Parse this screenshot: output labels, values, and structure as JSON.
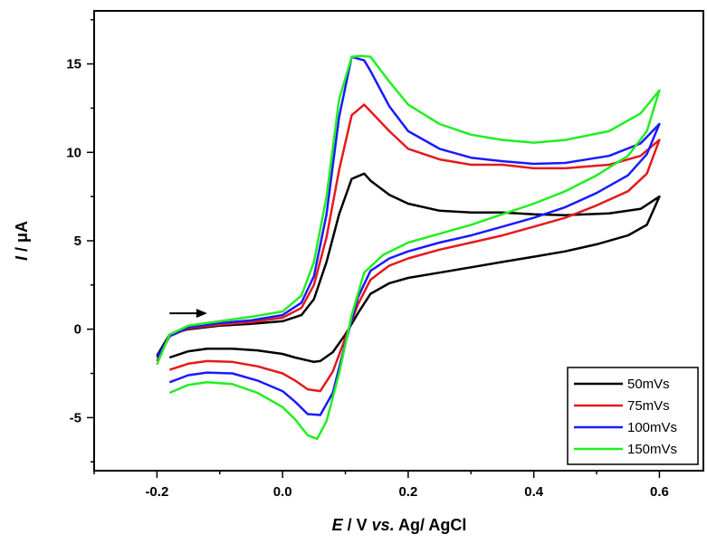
{
  "chart_data": {
    "type": "line",
    "title": "",
    "xlabel": "E / V vs. Ag/ AgCl",
    "ylabel": "I / μA",
    "xlim": [
      -0.3,
      0.67
    ],
    "ylim": [
      -8,
      18
    ],
    "xticks": [
      -0.2,
      0.0,
      0.2,
      0.4,
      0.6
    ],
    "yticks": [
      -5,
      0,
      5,
      10,
      15
    ],
    "xtick_labels": [
      "-0.2",
      "0.0",
      "0.2",
      "0.4",
      "0.6"
    ],
    "ytick_labels": [
      "-5",
      "0",
      "5",
      "10",
      "15"
    ],
    "grid": false,
    "legend_position": "bottom-right",
    "annotation": "scan direction arrow (positive direction)",
    "annotation_arrow": {
      "from": [
        -0.18,
        0.9
      ],
      "to": [
        -0.12,
        0.9
      ]
    },
    "series": [
      {
        "name": "50mVs",
        "color": "#000000",
        "points": [
          [
            -0.18,
            -1.6
          ],
          [
            -0.15,
            -1.25
          ],
          [
            -0.12,
            -1.1
          ],
          [
            -0.08,
            -1.1
          ],
          [
            -0.04,
            -1.2
          ],
          [
            0.0,
            -1.4
          ],
          [
            0.02,
            -1.6
          ],
          [
            0.05,
            -1.85
          ],
          [
            0.06,
            -1.8
          ],
          [
            0.08,
            -1.3
          ],
          [
            0.1,
            -0.3
          ],
          [
            0.12,
            0.9
          ],
          [
            0.14,
            2.0
          ],
          [
            0.17,
            2.6
          ],
          [
            0.2,
            2.9
          ],
          [
            0.25,
            3.2
          ],
          [
            0.3,
            3.5
          ],
          [
            0.35,
            3.8
          ],
          [
            0.4,
            4.1
          ],
          [
            0.45,
            4.4
          ],
          [
            0.5,
            4.8
          ],
          [
            0.55,
            5.3
          ],
          [
            0.58,
            5.9
          ],
          [
            0.6,
            7.5
          ],
          [
            0.57,
            6.8
          ],
          [
            0.52,
            6.55
          ],
          [
            0.45,
            6.45
          ],
          [
            0.4,
            6.5
          ],
          [
            0.35,
            6.6
          ],
          [
            0.3,
            6.6
          ],
          [
            0.25,
            6.7
          ],
          [
            0.2,
            7.1
          ],
          [
            0.17,
            7.6
          ],
          [
            0.14,
            8.4
          ],
          [
            0.13,
            8.8
          ],
          [
            0.11,
            8.5
          ],
          [
            0.09,
            6.5
          ],
          [
            0.07,
            3.8
          ],
          [
            0.05,
            1.7
          ],
          [
            0.03,
            0.8
          ],
          [
            0.0,
            0.45
          ],
          [
            -0.05,
            0.3
          ],
          [
            -0.1,
            0.2
          ],
          [
            -0.15,
            0.0
          ],
          [
            -0.18,
            -0.3
          ],
          [
            -0.2,
            -1.5
          ]
        ]
      },
      {
        "name": "75mVs",
        "color": "#e31a1c",
        "points": [
          [
            -0.18,
            -2.3
          ],
          [
            -0.15,
            -1.95
          ],
          [
            -0.12,
            -1.8
          ],
          [
            -0.08,
            -1.85
          ],
          [
            -0.04,
            -2.1
          ],
          [
            0.0,
            -2.5
          ],
          [
            0.02,
            -2.9
          ],
          [
            0.04,
            -3.4
          ],
          [
            0.06,
            -3.5
          ],
          [
            0.08,
            -2.4
          ],
          [
            0.1,
            -0.5
          ],
          [
            0.12,
            1.4
          ],
          [
            0.14,
            2.8
          ],
          [
            0.17,
            3.6
          ],
          [
            0.2,
            4.0
          ],
          [
            0.25,
            4.5
          ],
          [
            0.3,
            4.9
          ],
          [
            0.35,
            5.3
          ],
          [
            0.4,
            5.8
          ],
          [
            0.45,
            6.3
          ],
          [
            0.5,
            7.0
          ],
          [
            0.55,
            7.8
          ],
          [
            0.58,
            8.8
          ],
          [
            0.6,
            10.7
          ],
          [
            0.57,
            9.8
          ],
          [
            0.52,
            9.3
          ],
          [
            0.45,
            9.1
          ],
          [
            0.4,
            9.1
          ],
          [
            0.35,
            9.3
          ],
          [
            0.3,
            9.3
          ],
          [
            0.25,
            9.6
          ],
          [
            0.2,
            10.2
          ],
          [
            0.17,
            11.2
          ],
          [
            0.13,
            12.7
          ],
          [
            0.11,
            12.1
          ],
          [
            0.09,
            9.0
          ],
          [
            0.07,
            5.2
          ],
          [
            0.05,
            2.5
          ],
          [
            0.03,
            1.2
          ],
          [
            0.0,
            0.65
          ],
          [
            -0.05,
            0.4
          ],
          [
            -0.1,
            0.25
          ],
          [
            -0.15,
            0.05
          ],
          [
            -0.18,
            -0.4
          ],
          [
            -0.2,
            -1.8
          ]
        ]
      },
      {
        "name": "100mVs",
        "color": "#1a1aff",
        "points": [
          [
            -0.18,
            -3.0
          ],
          [
            -0.15,
            -2.6
          ],
          [
            -0.12,
            -2.45
          ],
          [
            -0.08,
            -2.5
          ],
          [
            -0.04,
            -2.9
          ],
          [
            0.0,
            -3.5
          ],
          [
            0.02,
            -4.1
          ],
          [
            0.04,
            -4.8
          ],
          [
            0.06,
            -4.85
          ],
          [
            0.08,
            -3.6
          ],
          [
            0.1,
            -0.8
          ],
          [
            0.12,
            1.8
          ],
          [
            0.14,
            3.3
          ],
          [
            0.17,
            4.0
          ],
          [
            0.2,
            4.4
          ],
          [
            0.25,
            4.9
          ],
          [
            0.3,
            5.3
          ],
          [
            0.35,
            5.8
          ],
          [
            0.4,
            6.3
          ],
          [
            0.45,
            6.9
          ],
          [
            0.5,
            7.7
          ],
          [
            0.55,
            8.7
          ],
          [
            0.58,
            9.9
          ],
          [
            0.6,
            11.6
          ],
          [
            0.57,
            10.5
          ],
          [
            0.52,
            9.8
          ],
          [
            0.45,
            9.4
          ],
          [
            0.4,
            9.35
          ],
          [
            0.35,
            9.5
          ],
          [
            0.3,
            9.7
          ],
          [
            0.25,
            10.2
          ],
          [
            0.2,
            11.2
          ],
          [
            0.17,
            12.6
          ],
          [
            0.14,
            14.6
          ],
          [
            0.13,
            15.2
          ],
          [
            0.11,
            15.4
          ],
          [
            0.09,
            12.0
          ],
          [
            0.07,
            6.5
          ],
          [
            0.05,
            3.0
          ],
          [
            0.03,
            1.5
          ],
          [
            0.0,
            0.8
          ],
          [
            -0.05,
            0.5
          ],
          [
            -0.1,
            0.35
          ],
          [
            -0.15,
            0.1
          ],
          [
            -0.18,
            -0.4
          ],
          [
            -0.2,
            -1.6
          ]
        ]
      },
      {
        "name": "150mVs",
        "color": "#22ee22",
        "points": [
          [
            -0.18,
            -3.6
          ],
          [
            -0.15,
            -3.15
          ],
          [
            -0.12,
            -3.0
          ],
          [
            -0.08,
            -3.1
          ],
          [
            -0.04,
            -3.6
          ],
          [
            0.0,
            -4.4
          ],
          [
            0.02,
            -5.1
          ],
          [
            0.04,
            -6.0
          ],
          [
            0.055,
            -6.2
          ],
          [
            0.07,
            -5.2
          ],
          [
            0.09,
            -2.5
          ],
          [
            0.11,
            0.8
          ],
          [
            0.13,
            3.2
          ],
          [
            0.16,
            4.2
          ],
          [
            0.2,
            4.9
          ],
          [
            0.25,
            5.4
          ],
          [
            0.3,
            5.9
          ],
          [
            0.35,
            6.5
          ],
          [
            0.4,
            7.1
          ],
          [
            0.45,
            7.8
          ],
          [
            0.5,
            8.7
          ],
          [
            0.55,
            9.8
          ],
          [
            0.58,
            11.2
          ],
          [
            0.6,
            13.5
          ],
          [
            0.57,
            12.2
          ],
          [
            0.52,
            11.2
          ],
          [
            0.45,
            10.7
          ],
          [
            0.4,
            10.55
          ],
          [
            0.35,
            10.7
          ],
          [
            0.3,
            11.0
          ],
          [
            0.25,
            11.6
          ],
          [
            0.2,
            12.7
          ],
          [
            0.17,
            14.0
          ],
          [
            0.14,
            15.4
          ],
          [
            0.125,
            15.45
          ],
          [
            0.11,
            15.4
          ],
          [
            0.09,
            13.0
          ],
          [
            0.07,
            7.5
          ],
          [
            0.05,
            3.8
          ],
          [
            0.03,
            1.9
          ],
          [
            0.0,
            1.0
          ],
          [
            -0.05,
            0.7
          ],
          [
            -0.1,
            0.45
          ],
          [
            -0.15,
            0.2
          ],
          [
            -0.18,
            -0.3
          ],
          [
            -0.2,
            -2.0
          ]
        ]
      }
    ]
  }
}
